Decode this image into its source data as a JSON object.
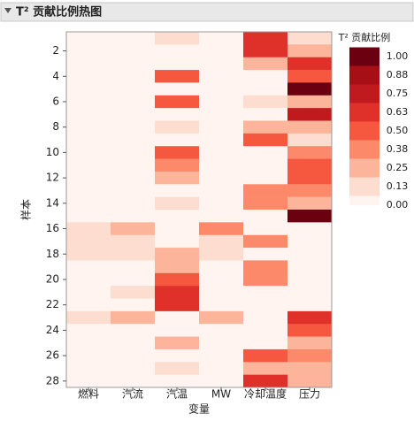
{
  "chart_data": {
    "type": "heatmap",
    "title": "T² 贡献比例热图",
    "x_label": "变量",
    "y_label": "样本",
    "columns": [
      "燃料",
      "汽流",
      "汽温",
      "MW",
      "冷却温度",
      "压力"
    ],
    "rows": [
      null,
      "2",
      null,
      "4",
      null,
      "6",
      null,
      "8",
      null,
      "10",
      null,
      "12",
      null,
      "14",
      null,
      "16",
      null,
      "18",
      null,
      "20",
      null,
      "22",
      null,
      "24",
      null,
      "26",
      null,
      "28"
    ],
    "values": [
      [
        0.03,
        0.03,
        0.18,
        0.03,
        0.7,
        0.18
      ],
      [
        0.03,
        0.03,
        0.03,
        0.03,
        0.7,
        0.3
      ],
      [
        0.03,
        0.03,
        0.03,
        0.03,
        0.3,
        0.7
      ],
      [
        0.03,
        0.03,
        0.55,
        0.03,
        0.03,
        0.5
      ],
      [
        0.03,
        0.03,
        0.03,
        0.03,
        0.03,
        1.0
      ],
      [
        0.03,
        0.03,
        0.55,
        0.03,
        0.18,
        0.35
      ],
      [
        0.03,
        0.03,
        0.03,
        0.03,
        0.03,
        0.8
      ],
      [
        0.03,
        0.03,
        0.2,
        0.03,
        0.33,
        0.3
      ],
      [
        0.03,
        0.03,
        0.03,
        0.03,
        0.55,
        0.2
      ],
      [
        0.03,
        0.03,
        0.55,
        0.03,
        0.03,
        0.45
      ],
      [
        0.03,
        0.03,
        0.45,
        0.03,
        0.03,
        0.55
      ],
      [
        0.03,
        0.03,
        0.3,
        0.03,
        0.03,
        0.55
      ],
      [
        0.03,
        0.03,
        0.03,
        0.03,
        0.45,
        0.45
      ],
      [
        0.03,
        0.03,
        0.18,
        0.03,
        0.45,
        0.35
      ],
      [
        0.03,
        0.03,
        0.03,
        0.03,
        0.03,
        1.0
      ],
      [
        0.18,
        0.3,
        0.03,
        0.45,
        0.03,
        0.05
      ],
      [
        0.18,
        0.2,
        0.03,
        0.18,
        0.45,
        0.05
      ],
      [
        0.18,
        0.2,
        0.3,
        0.18,
        0.03,
        0.05
      ],
      [
        0.03,
        0.03,
        0.35,
        0.03,
        0.45,
        0.03
      ],
      [
        0.03,
        0.03,
        0.55,
        0.03,
        0.45,
        0.03
      ],
      [
        0.03,
        0.18,
        0.68,
        0.03,
        0.03,
        0.03
      ],
      [
        0.03,
        0.03,
        0.7,
        0.03,
        0.03,
        0.03
      ],
      [
        0.2,
        0.33,
        0.03,
        0.3,
        0.03,
        0.7
      ],
      [
        0.03,
        0.03,
        0.03,
        0.03,
        0.03,
        0.5
      ],
      [
        0.03,
        0.03,
        0.33,
        0.03,
        0.03,
        0.35
      ],
      [
        0.03,
        0.03,
        0.03,
        0.03,
        0.5,
        0.45
      ],
      [
        0.03,
        0.03,
        0.18,
        0.03,
        0.35,
        0.3
      ],
      [
        0.03,
        0.03,
        0.03,
        0.03,
        0.7,
        0.3
      ]
    ],
    "legend_title": "T² 贡献比例",
    "color_breaks": [
      {
        "value": 0,
        "label": "0.00"
      },
      {
        "value": 0.13,
        "label": "0.13"
      },
      {
        "value": 0.25,
        "label": "0.25"
      },
      {
        "value": 0.38,
        "label": "0.38"
      },
      {
        "value": 0.5,
        "label": "0.50"
      },
      {
        "value": 0.63,
        "label": "0.63"
      },
      {
        "value": 0.75,
        "label": "0.75"
      },
      {
        "value": 0.88,
        "label": "0.88"
      },
      {
        "value": 1,
        "label": "1.00"
      }
    ],
    "colors": [
      "#fff4ef",
      "#fdddcf",
      "#fcb49a",
      "#fc8a6a",
      "#f6583f",
      "#e0302a",
      "#c01a1f",
      "#a50f15",
      "#6b0010"
    ]
  }
}
